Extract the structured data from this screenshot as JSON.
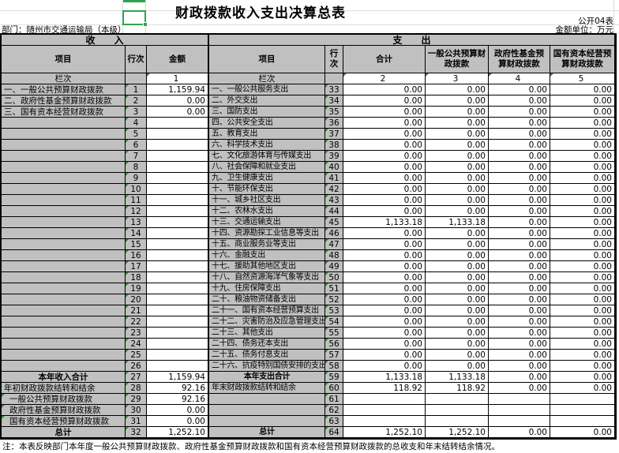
{
  "title": "财政拨款收入支出决算总表",
  "meta": {
    "sheet_label": "公开04表",
    "department": "部门：随州市交通运输局（本级）",
    "unit": "金额单位：万元"
  },
  "sections": {
    "income_header": "收　　入",
    "expense_header": "支　　出"
  },
  "columns": {
    "income": [
      "项目",
      "行次",
      "金额"
    ],
    "expense": [
      "项目",
      "行次",
      "合计",
      "一般公共预算财政拨款",
      "政府性基金预算财政拨款",
      "国有资本经营预算财政拨款"
    ],
    "lanci_label": "栏次",
    "lanci_numbers": [
      "1",
      "2",
      "3",
      "4",
      "5"
    ]
  },
  "income_rows": [
    {
      "label": "一、一般公共预算财政拨款",
      "line": "1",
      "amount": "1,159.94"
    },
    {
      "label": "二、政府性基金预算财政拨款",
      "line": "2",
      "amount": "0.00"
    },
    {
      "label": "三、国有资本经营财政拨款",
      "line": "3",
      "amount": "0.00"
    },
    {
      "label": "",
      "line": "4",
      "amount": ""
    },
    {
      "label": "",
      "line": "5",
      "amount": ""
    },
    {
      "label": "",
      "line": "6",
      "amount": ""
    },
    {
      "label": "",
      "line": "7",
      "amount": ""
    },
    {
      "label": "",
      "line": "8",
      "amount": ""
    },
    {
      "label": "",
      "line": "9",
      "amount": ""
    },
    {
      "label": "",
      "line": "10",
      "amount": ""
    },
    {
      "label": "",
      "line": "11",
      "amount": ""
    },
    {
      "label": "",
      "line": "12",
      "amount": ""
    },
    {
      "label": "",
      "line": "13",
      "amount": ""
    },
    {
      "label": "",
      "line": "14",
      "amount": ""
    },
    {
      "label": "",
      "line": "15",
      "amount": ""
    },
    {
      "label": "",
      "line": "16",
      "amount": ""
    },
    {
      "label": "",
      "line": "17",
      "amount": ""
    },
    {
      "label": "",
      "line": "18",
      "amount": ""
    },
    {
      "label": "",
      "line": "19",
      "amount": ""
    },
    {
      "label": "",
      "line": "20",
      "amount": ""
    },
    {
      "label": "",
      "line": "21",
      "amount": ""
    },
    {
      "label": "",
      "line": "22",
      "amount": ""
    },
    {
      "label": "",
      "line": "23",
      "amount": ""
    },
    {
      "label": "",
      "line": "24",
      "amount": ""
    },
    {
      "label": "",
      "line": "25",
      "amount": ""
    },
    {
      "label": "",
      "line": "26",
      "amount": ""
    },
    {
      "label": "本年收入合计",
      "line": "27",
      "amount": "1,159.94",
      "bold": true,
      "center": true
    },
    {
      "label": "年初财政拨款结转和结余",
      "line": "28",
      "amount": "92.16"
    },
    {
      "label": "一般公共预算财政拨款",
      "line": "29",
      "amount": "92.16",
      "indent": true,
      "tri": true
    },
    {
      "label": "政府性基金预算财政拨款",
      "line": "30",
      "amount": "0.00",
      "indent": true,
      "tri": true
    },
    {
      "label": "国有资本经营预算财政拨款",
      "line": "31",
      "amount": "0.00",
      "indent": true,
      "tri": true
    },
    {
      "label": "总计",
      "line": "32",
      "amount": "1,252.10",
      "bold": true,
      "center": true
    }
  ],
  "expense_rows": [
    {
      "label": "一、一般公共服务支出",
      "line": "33",
      "values": [
        "0.00",
        "0.00",
        "0.00",
        "0.00"
      ]
    },
    {
      "label": "二、外交支出",
      "line": "34",
      "values": [
        "0.00",
        "0.00",
        "0.00",
        "0.00"
      ]
    },
    {
      "label": "三、国防支出",
      "line": "35",
      "values": [
        "0.00",
        "0.00",
        "0.00",
        "0.00"
      ]
    },
    {
      "label": "四、公共安全支出",
      "line": "36",
      "values": [
        "0.00",
        "0.00",
        "0.00",
        "0.00"
      ]
    },
    {
      "label": "五、教育支出",
      "line": "37",
      "values": [
        "0.00",
        "0.00",
        "0.00",
        "0.00"
      ]
    },
    {
      "label": "六、科学技术支出",
      "line": "38",
      "values": [
        "0.00",
        "0.00",
        "0.00",
        "0.00"
      ]
    },
    {
      "label": "七、文化旅游体育与传媒支出",
      "line": "39",
      "values": [
        "0.00",
        "0.00",
        "0.00",
        "0.00"
      ]
    },
    {
      "label": "八、社会保障和就业支出",
      "line": "40",
      "values": [
        "0.00",
        "0.00",
        "0.00",
        "0.00"
      ]
    },
    {
      "label": "九、卫生健康支出",
      "line": "41",
      "values": [
        "0.00",
        "0.00",
        "0.00",
        "0.00"
      ]
    },
    {
      "label": "十、节能环保支出",
      "line": "42",
      "values": [
        "0.00",
        "0.00",
        "0.00",
        "0.00"
      ]
    },
    {
      "label": "十一、城乡社区支出",
      "line": "43",
      "values": [
        "0.00",
        "0.00",
        "0.00",
        "0.00"
      ]
    },
    {
      "label": "十二、农林水支出",
      "line": "44",
      "values": [
        "0.00",
        "0.00",
        "0.00",
        "0.00"
      ]
    },
    {
      "label": "十三、交通运输支出",
      "line": "45",
      "values": [
        "1,133.18",
        "1,133.18",
        "0.00",
        "0.00"
      ]
    },
    {
      "label": "十四、资源勘探工业信息等支出",
      "line": "46",
      "values": [
        "0.00",
        "0.00",
        "0.00",
        "0.00"
      ]
    },
    {
      "label": "十五、商业服务业等支出",
      "line": "47",
      "values": [
        "0.00",
        "0.00",
        "0.00",
        "0.00"
      ]
    },
    {
      "label": "十六、金融支出",
      "line": "48",
      "values": [
        "0.00",
        "0.00",
        "0.00",
        "0.00"
      ]
    },
    {
      "label": "十七、援助其他地区支出",
      "line": "49",
      "values": [
        "0.00",
        "0.00",
        "0.00",
        "0.00"
      ]
    },
    {
      "label": "十八、自然资源海洋气象等支出",
      "line": "50",
      "values": [
        "0.00",
        "0.00",
        "0.00",
        "0.00"
      ]
    },
    {
      "label": "十九、住房保障支出",
      "line": "51",
      "values": [
        "0.00",
        "0.00",
        "0.00",
        "0.00"
      ]
    },
    {
      "label": "二十、粮油物资储备支出",
      "line": "52",
      "values": [
        "0.00",
        "0.00",
        "0.00",
        "0.00"
      ]
    },
    {
      "label": "二十一、国有资本经营预算支出",
      "line": "53",
      "values": [
        "0.00",
        "0.00",
        "0.00",
        "0.00"
      ]
    },
    {
      "label": "二十二、灾害防治及应急管理支出",
      "line": "54",
      "values": [
        "0.00",
        "0.00",
        "0.00",
        "0.00"
      ]
    },
    {
      "label": "二十三、其他支出",
      "line": "55",
      "values": [
        "0.00",
        "0.00",
        "0.00",
        "0.00"
      ]
    },
    {
      "label": "二十四、债务还本支出",
      "line": "56",
      "values": [
        "0.00",
        "0.00",
        "0.00",
        "0.00"
      ]
    },
    {
      "label": "二十五、债务付息支出",
      "line": "57",
      "values": [
        "0.00",
        "0.00",
        "0.00",
        "0.00"
      ]
    },
    {
      "label": "二十六、抗疫特别国债安排的支出",
      "line": "58",
      "values": [
        "0.00",
        "0.00",
        "0.00",
        "0.00"
      ]
    },
    {
      "label": "本年支出合计",
      "line": "59",
      "values": [
        "1,133.18",
        "1,133.18",
        "0.00",
        "0.00"
      ],
      "bold": true,
      "center": true
    },
    {
      "label": "年末财政拨款结转和结余",
      "line": "60",
      "values": [
        "118.92",
        "118.92",
        "0.00",
        "0.00"
      ]
    },
    {
      "label": "",
      "line": "61",
      "values": [
        "",
        "",
        "",
        ""
      ]
    },
    {
      "label": "",
      "line": "62",
      "values": [
        "",
        "",
        "",
        ""
      ]
    },
    {
      "label": "",
      "line": "63",
      "values": [
        "",
        "",
        "",
        ""
      ]
    },
    {
      "label": "总计",
      "line": "64",
      "values": [
        "1,252.10",
        "1,252.10",
        "0.00",
        "0.00"
      ],
      "bold": true,
      "center": true
    }
  ],
  "note": "注：本表反映部门本年度一般公共预算财政拨款、政府性基金预算财政拨款和国有资本经营预算财政拨款的总收支和年末结转结余情况。",
  "colors": {
    "selection_green": "#2EA44F",
    "error_triangle_green": "#2E8B2E",
    "label_cell_gray": "#C0C0C0",
    "value_cell_white": "#FFFFFF",
    "grid_border": "#000000"
  }
}
